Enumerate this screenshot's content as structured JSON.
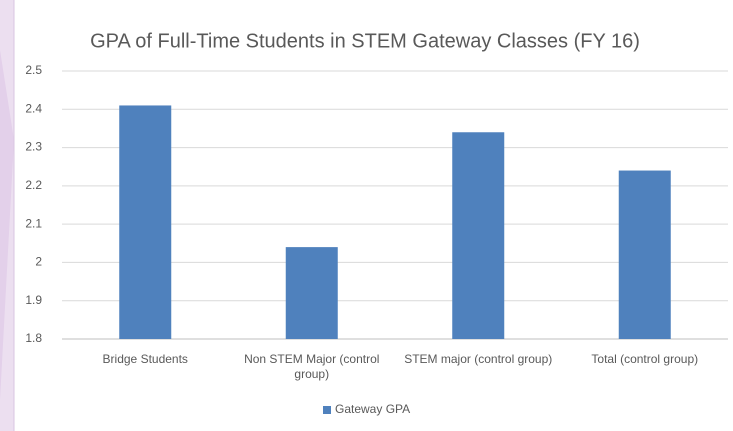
{
  "chart_data": {
    "type": "bar",
    "title": "GPA of Full-Time Students in STEM Gateway Classes (FY 16)",
    "categories": [
      "Bridge Students",
      "Non STEM Major (control group)",
      "STEM major (control group)",
      "Total  (control group)"
    ],
    "series": [
      {
        "name": "Gateway GPA",
        "color": "#4f81bd",
        "values": [
          2.41,
          2.04,
          2.34,
          2.24
        ]
      }
    ],
    "ylim": [
      1.8,
      2.5
    ],
    "yticks": [
      1.8,
      1.9,
      2,
      2.1,
      2.2,
      2.3,
      2.4,
      2.5
    ],
    "grid": true,
    "legend": "bottom"
  }
}
